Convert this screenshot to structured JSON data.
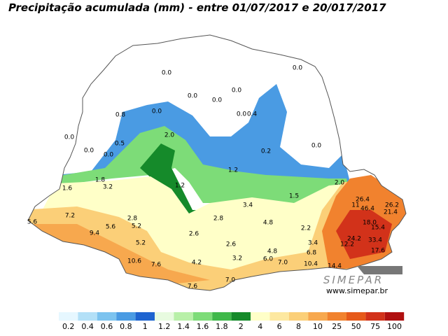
{
  "title": "Precipitação acumulada (mm) - entre 01/07/2017 e 20/017/2017",
  "stations": [
    "0.0",
    "0.0",
    "0.0",
    "0.0",
    "0.0",
    "0.8",
    "0.0",
    "0.0",
    "0.4",
    "0.0",
    "2.0",
    "0.5",
    "0.0",
    "0.0",
    "0.2",
    "0.0",
    "1.8",
    "1.2",
    "3.2",
    "1.6",
    "1.2",
    "2.0",
    "1.5",
    "26.4",
    "26.2",
    "11",
    "46.4",
    "21.4",
    "3.4",
    "7.2",
    "2.8",
    "2.8",
    "5.6",
    "4.8",
    "18.0",
    "15.4",
    "5.6",
    "5.2",
    "2.2",
    "9.4",
    "2.6",
    "24.2",
    "33.4",
    "5.2",
    "3.4",
    "2.6",
    "12.2",
    "17.6",
    "4.8",
    "6.8",
    "3.2",
    "6.0",
    "7.0",
    "10.6",
    "7.6",
    "4.2",
    "10.4",
    "14.4",
    "7.0",
    "7.6"
  ],
  "logo": {
    "name": "SIMEPAR",
    "url": "www.simepar.br"
  },
  "legend": {
    "labels": [
      "0.2",
      "0.4",
      "0.6",
      "0.8",
      "1",
      "1.2",
      "1.4",
      "1.6",
      "1.8",
      "2",
      "4",
      "6",
      "8",
      "10",
      "25",
      "50",
      "75",
      "100"
    ],
    "colors": [
      "#e6f7ff",
      "#b3e0f7",
      "#7cc3ef",
      "#4a9be3",
      "#1e64d0",
      "#e8fbe0",
      "#b8f0a8",
      "#7ddc78",
      "#3fb84a",
      "#158a2a",
      "#ffffc8",
      "#fde8a0",
      "#fbcf78",
      "#f7a84e",
      "#f1822e",
      "#e65a1a",
      "#d2321a",
      "#b01010"
    ]
  }
}
